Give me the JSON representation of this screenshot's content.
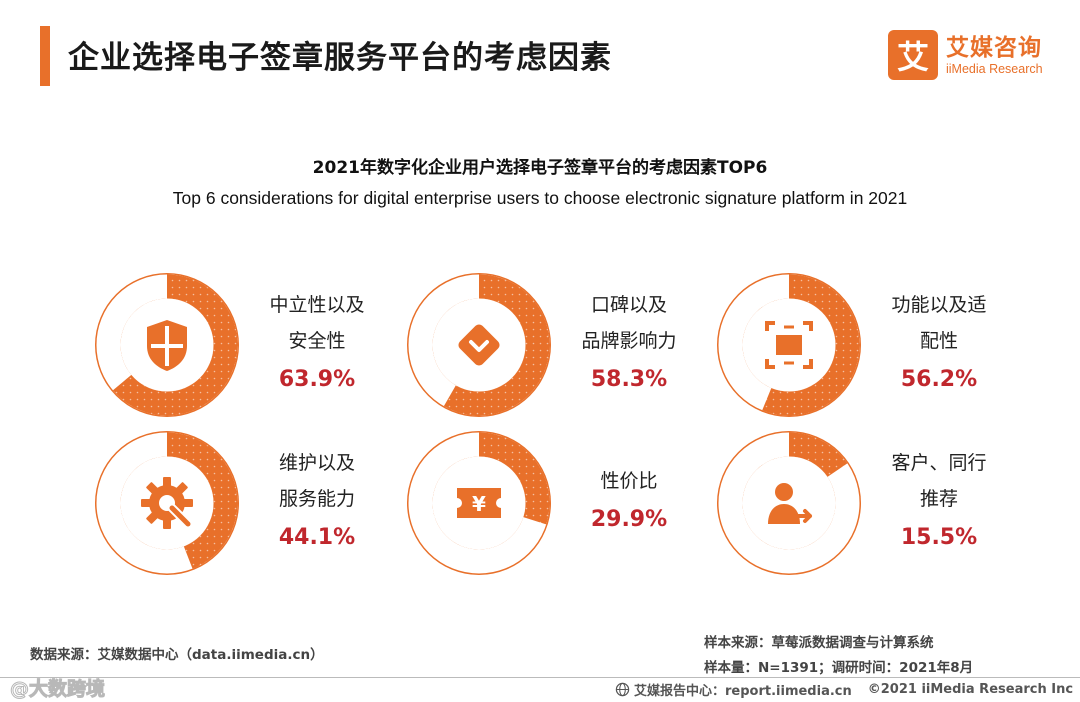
{
  "header": {
    "title": "企业选择电子签章服务平台的考虑因素",
    "logo_mark": "艾",
    "logo_cn": "艾媒咨询",
    "logo_en": "iiMedia Research"
  },
  "colors": {
    "accent": "#e8702a",
    "percent_text": "#c0272d",
    "donut_track": "#ffffff"
  },
  "chart_data": {
    "type": "pie",
    "title": "2021年数字化企业用户选择电子签章平台的考虑因素TOP6",
    "subtitle": "Top 6 considerations for digital enterprise users to choose electronic signature platform in 2021",
    "unit": "%",
    "items": [
      {
        "label_lines": [
          "中立性以及",
          "安全性"
        ],
        "value": 63.9,
        "display": "63.9%",
        "icon": "shield-icon"
      },
      {
        "label_lines": [
          "口碑以及",
          "品牌影响力"
        ],
        "value": 58.3,
        "display": "58.3%",
        "icon": "badge-check-icon"
      },
      {
        "label_lines": [
          "功能以及适",
          "配性"
        ],
        "value": 56.2,
        "display": "56.2%",
        "icon": "frame-icon"
      },
      {
        "label_lines": [
          "维护以及",
          "服务能力"
        ],
        "value": 44.1,
        "display": "44.1%",
        "icon": "gear-wrench-icon"
      },
      {
        "label_lines": [
          "性价比"
        ],
        "value": 29.9,
        "display": "29.9%",
        "icon": "yen-ticket-icon"
      },
      {
        "label_lines": [
          "客户、同行",
          "推荐"
        ],
        "value": 15.5,
        "display": "15.5%",
        "icon": "user-referral-icon"
      }
    ]
  },
  "footer": {
    "data_source": "数据来源：艾媒数据中心（data.iimedia.cn）",
    "sample_source": "样本来源：草莓派数据调查与计算系统",
    "sample_size": "样本量：N=1391；调研时间：2021年8月",
    "report_center": "艾媒报告中心：report.iimedia.cn",
    "copyright": "©2021  iiMedia Research  Inc",
    "watermark": "@大数跨境"
  }
}
